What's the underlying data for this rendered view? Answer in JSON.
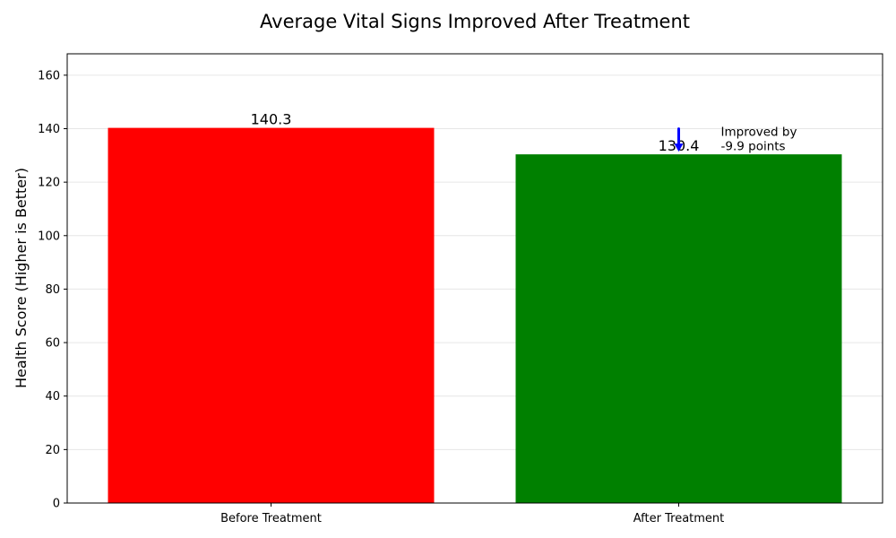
{
  "chart_data": {
    "type": "bar",
    "title": "Average Vital Signs Improved After Treatment",
    "xlabel": "",
    "ylabel": "Health Score (Higher is Better)",
    "categories": [
      "Before Treatment",
      "After Treatment"
    ],
    "values": [
      140.3,
      130.4
    ],
    "value_labels": [
      "140.3",
      "130.4"
    ],
    "bar_colors": [
      "#ff0000",
      "#008000"
    ],
    "ylim": [
      0,
      168
    ],
    "yticks": [
      0,
      20,
      40,
      60,
      80,
      100,
      120,
      140,
      160
    ],
    "grid": "horizontal",
    "annotation": {
      "text_line1": "Improved by",
      "text_line2": "-9.9 points",
      "arrow_color": "#0000ff",
      "arrow_from": 140.3,
      "arrow_to": 130.4
    }
  }
}
